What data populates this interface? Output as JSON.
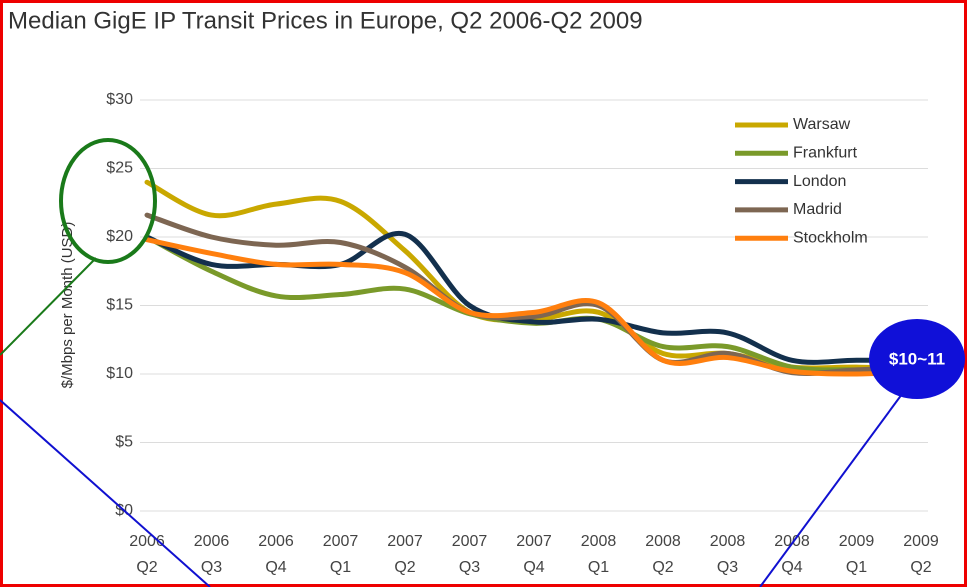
{
  "chart_data": {
    "type": "line",
    "title": "Median GigE IP Transit Prices in Europe, Q2 2006-Q2 2009",
    "y_label": "$/Mbps per Month (USD)",
    "categories": [
      [
        "2006",
        "Q2"
      ],
      [
        "2006",
        "Q3"
      ],
      [
        "2006",
        "Q4"
      ],
      [
        "2007",
        "Q1"
      ],
      [
        "2007",
        "Q2"
      ],
      [
        "2007",
        "Q3"
      ],
      [
        "2007",
        "Q4"
      ],
      [
        "2008",
        "Q1"
      ],
      [
        "2008",
        "Q2"
      ],
      [
        "2008",
        "Q3"
      ],
      [
        "2008",
        "Q4"
      ],
      [
        "2009",
        "Q1"
      ],
      [
        "2009",
        "Q2"
      ]
    ],
    "ylim": [
      0,
      30
    ],
    "yticks": [
      {
        "value": 0,
        "label": "$0"
      },
      {
        "value": 5,
        "label": "$5"
      },
      {
        "value": 10,
        "label": "$10"
      },
      {
        "value": 15,
        "label": "$15"
      },
      {
        "value": 20,
        "label": "$20"
      },
      {
        "value": 25,
        "label": "$25"
      },
      {
        "value": 30,
        "label": "$30"
      }
    ],
    "grid": true,
    "legend": "upper right",
    "series": [
      {
        "name": "Warsaw",
        "color": "#c9a800",
        "values": [
          24,
          21.6,
          22.4,
          22.6,
          19,
          14.5,
          14,
          14.5,
          11.5,
          11.5,
          10.5,
          10.5,
          10.3
        ]
      },
      {
        "name": "Frankfurt",
        "color": "#7a9a2a",
        "values": [
          20,
          17.5,
          15.7,
          15.8,
          16.2,
          14.4,
          13.7,
          14,
          12,
          12,
          10.5,
          10.3,
          10.3
        ]
      },
      {
        "name": "London",
        "color": "#13304d",
        "values": [
          20,
          18,
          18,
          18,
          20.2,
          15,
          13.8,
          14,
          13,
          13,
          11,
          11,
          11
        ]
      },
      {
        "name": "Madrid",
        "color": "#7d6652",
        "values": [
          21.6,
          20,
          19.4,
          19.6,
          17.8,
          14.5,
          14.2,
          15,
          11,
          11.5,
          10.1,
          10.3,
          10.5
        ]
      },
      {
        "name": "Stockholm",
        "color": "#ff7f0e",
        "values": [
          19.8,
          18.8,
          18,
          18,
          17.4,
          14.5,
          14.5,
          15.2,
          11,
          11.2,
          10.2,
          10,
          10.2
        ]
      }
    ],
    "annotation": "$10~11"
  }
}
